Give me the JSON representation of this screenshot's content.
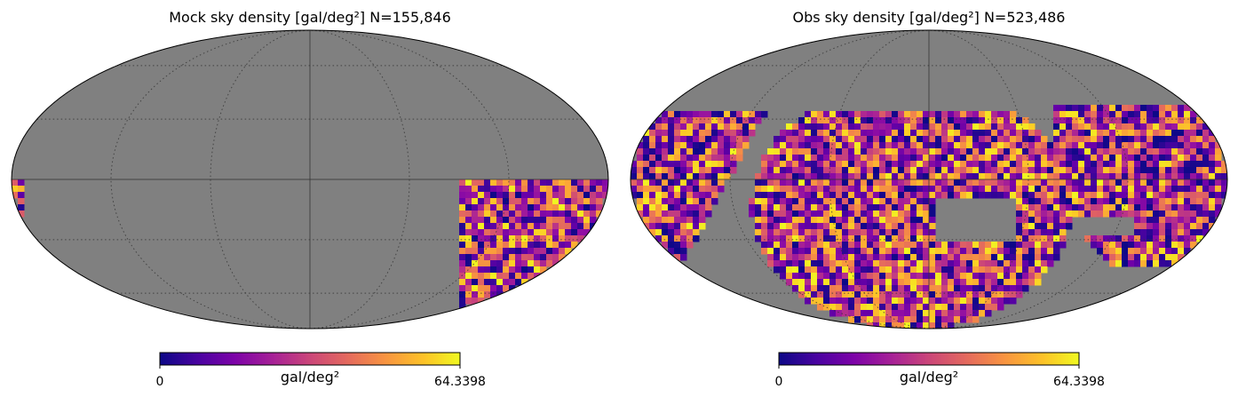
{
  "chart_data": [
    {
      "type": "heatmap",
      "projection": "mollweide",
      "title": "Mock sky density [gal/deg²]  N=155,846",
      "colormap": "plasma",
      "background_color": "#808080",
      "grid": true,
      "colorbar": {
        "label": "gal/deg²",
        "min": 0,
        "max": 64.3398,
        "min_label": "0",
        "max_label": "64.3398"
      },
      "footprint": "single patch from latitude 0° down to about -90°, longitude roughly -50° to -180° (lower right), small sliver at left edge",
      "value_range": [
        0,
        64.3398
      ]
    },
    {
      "type": "heatmap",
      "projection": "mollweide",
      "title": "Obs sky density [gal/deg²]  N=523,486",
      "colormap": "plasma",
      "background_color": "#808080",
      "grid": true,
      "colorbar": {
        "label": "gal/deg²",
        "min": 0,
        "max": 64.3398,
        "min_label": "0",
        "max_label": "64.3398"
      },
      "footprint": "large central region plus patches on left and right edges",
      "value_range": [
        0,
        64.3398
      ]
    }
  ]
}
